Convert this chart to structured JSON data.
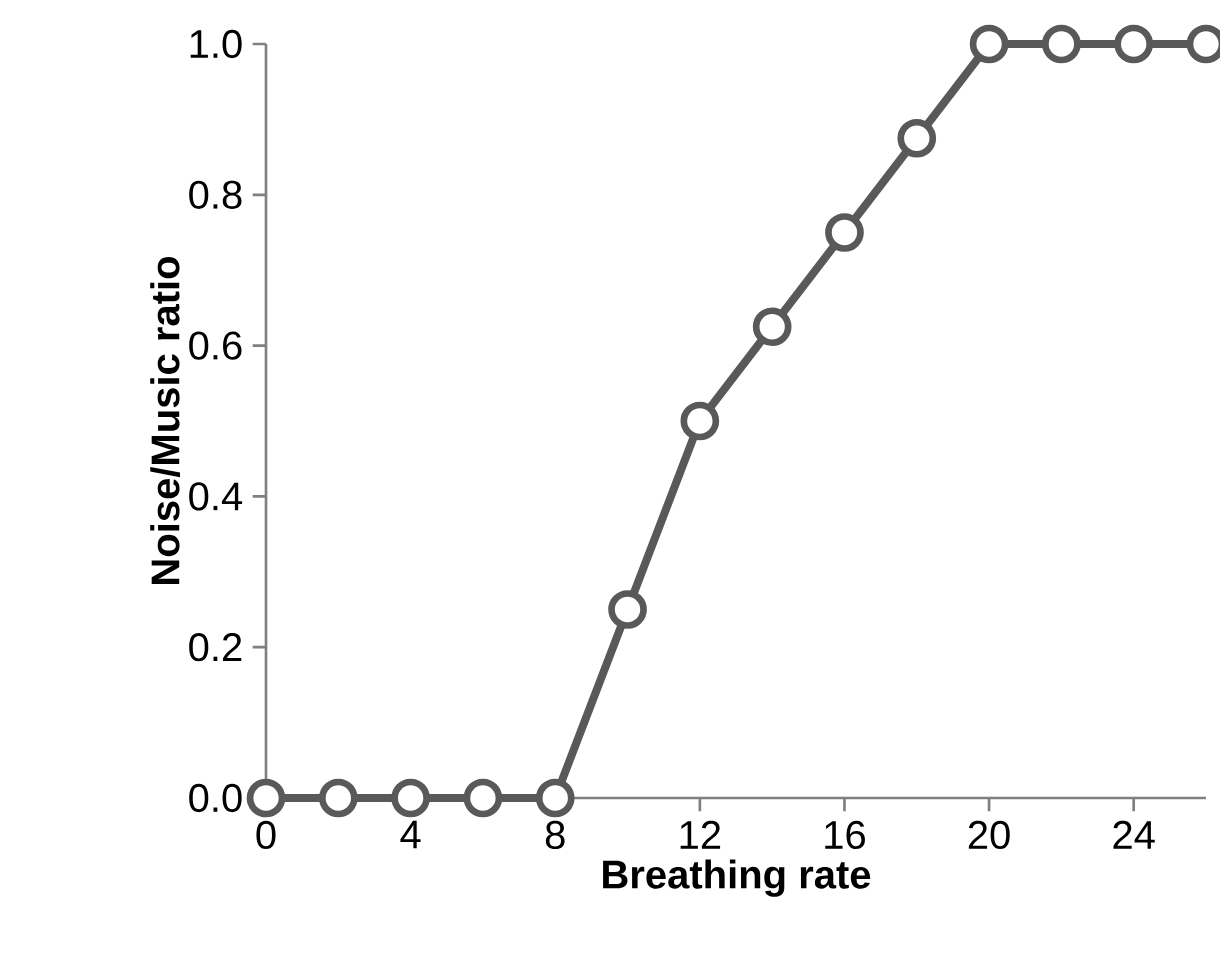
{
  "chart_data": {
    "type": "line",
    "xlabel": "Breathing rate",
    "ylabel": "Noise/Music ratio",
    "x": [
      0,
      2,
      4,
      6,
      8,
      10,
      12,
      14,
      16,
      18,
      20,
      22,
      24,
      26
    ],
    "series": [
      {
        "color": "#595959",
        "values": [
          0,
          0,
          0,
          0,
          0,
          0.25,
          0.5,
          0.625,
          0.75,
          0.875,
          1,
          1,
          1,
          1
        ]
      }
    ],
    "xlim": [
      0,
      26
    ],
    "xticks": [
      0,
      4,
      8,
      12,
      16,
      20,
      24
    ],
    "ylim": [
      0,
      1
    ],
    "yticks": [
      {
        "value": 0,
        "label": "0.0"
      },
      {
        "value": 0.2,
        "label": "0.2"
      },
      {
        "value": 0.4,
        "label": "0.4"
      },
      {
        "value": 0.6,
        "label": "0.6"
      },
      {
        "value": 0.8,
        "label": "0.8"
      },
      {
        "value": 1,
        "label": "1.0"
      }
    ],
    "grid": false,
    "marker": "circle",
    "line_style": "solid"
  }
}
